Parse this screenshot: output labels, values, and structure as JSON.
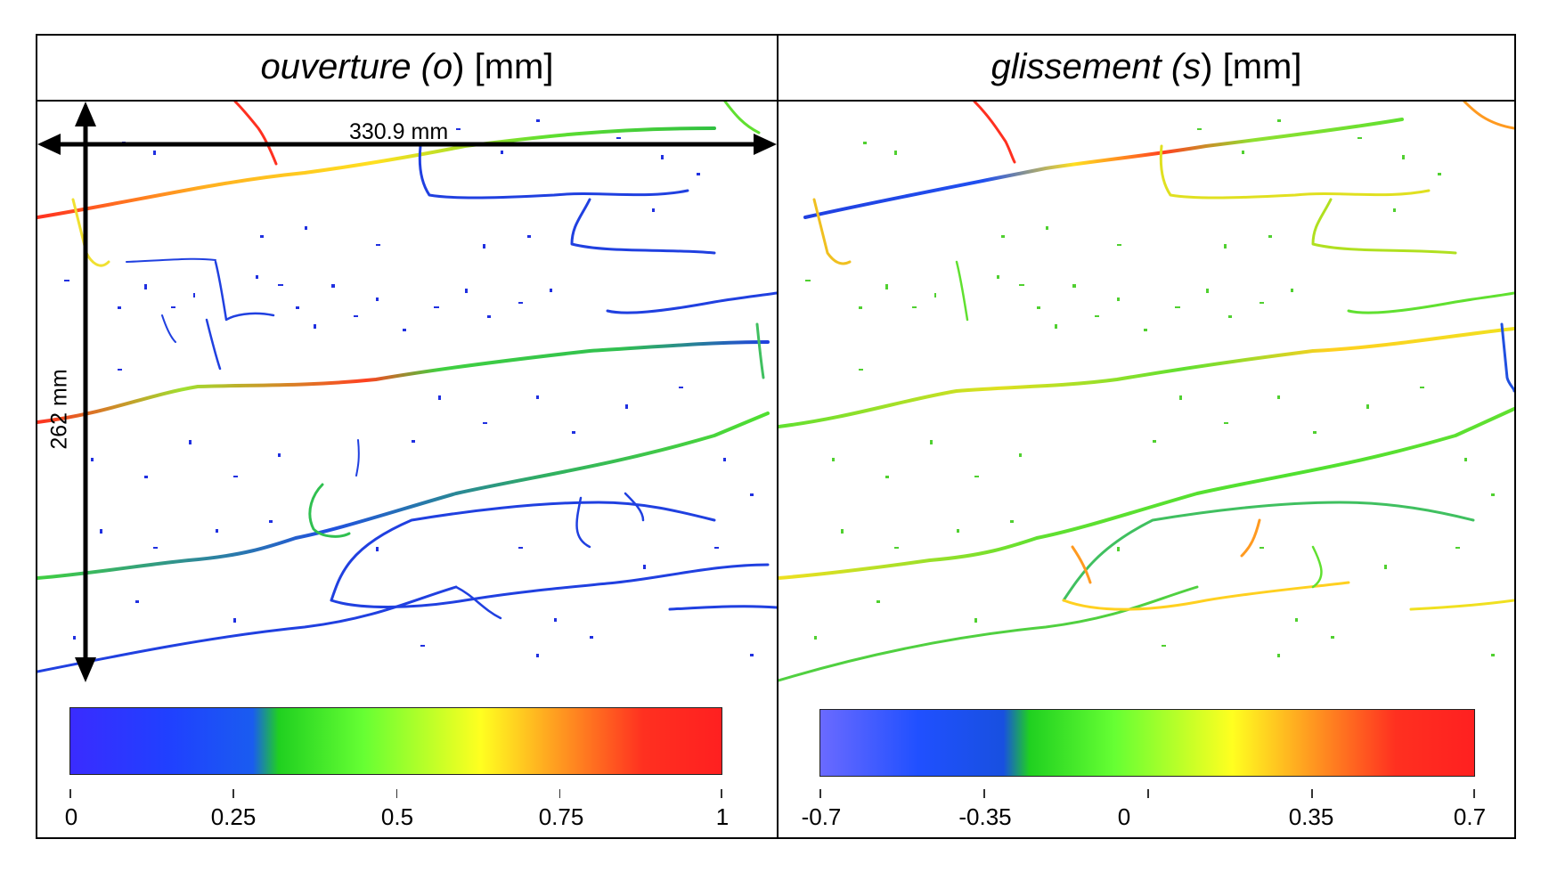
{
  "panels": [
    {
      "title_italic": "ouverture (o",
      "title_rest": ") [mm]",
      "colorbar": {
        "stops": [
          "#3a2cff",
          "#2040ff",
          "#1a5cf0",
          "#20d020",
          "#66ff33",
          "#ffff20",
          "#ff9a20",
          "#ff3020",
          "#ff2020"
        ],
        "ticks": [
          "0",
          "0.25",
          "0.5",
          "0.75",
          "1"
        ]
      }
    },
    {
      "title_italic": "glissement (s",
      "title_rest": ") [mm]",
      "colorbar": {
        "stops": [
          "#6a6aff",
          "#2050ff",
          "#1850e0",
          "#20d020",
          "#66ff33",
          "#ffff20",
          "#ff9a20",
          "#ff3020",
          "#ff2020"
        ],
        "ticks": [
          "-0.7",
          "-0.35",
          "0",
          "0.35",
          "0.7"
        ]
      }
    }
  ],
  "dimensions": {
    "width_label": "330.9 mm",
    "height_label": "262 mm"
  },
  "colors": {
    "crack_low": "#1f2de0",
    "crack_mid": "#3ccc2a",
    "crack_high": "#ff2a1a",
    "slip_zero": "#5fe03a"
  }
}
